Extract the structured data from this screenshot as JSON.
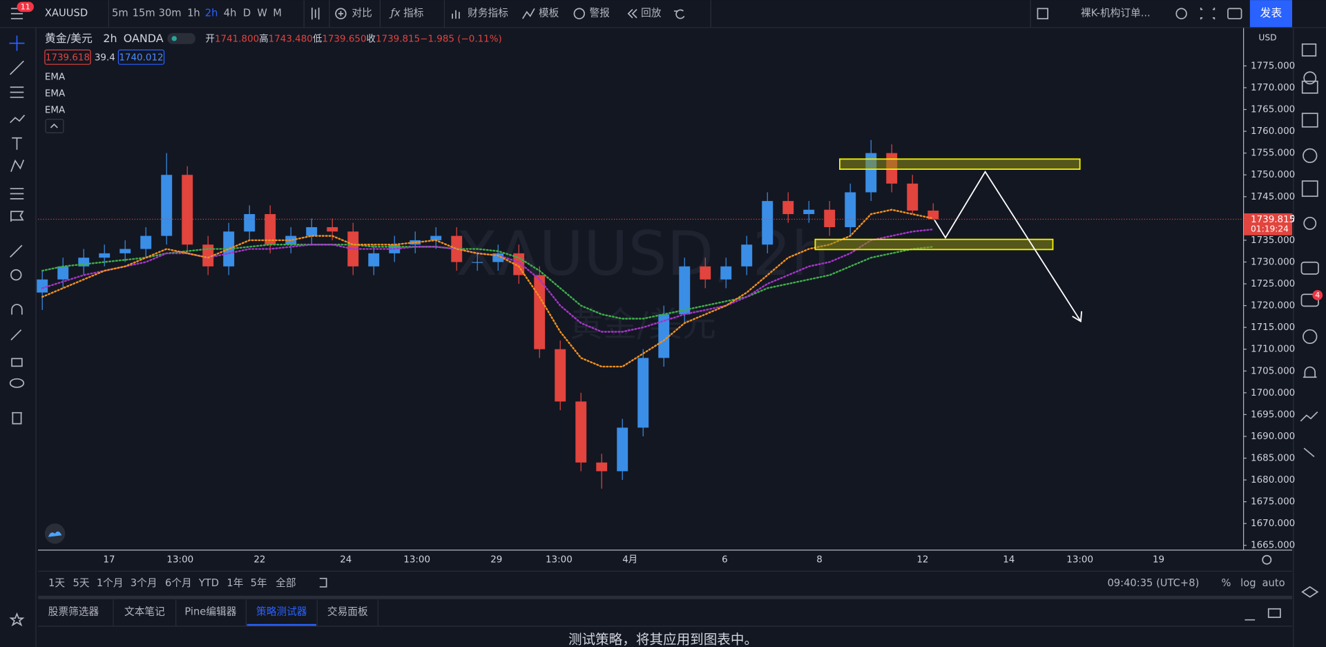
{
  "toolbar": {
    "badge": "11",
    "symbol": "XAUUSD",
    "intervals": [
      "5m",
      "15m",
      "30m",
      "1h",
      "2h",
      "4h",
      "D",
      "W",
      "M"
    ],
    "tools": [
      "对比",
      "指标",
      "财务指标",
      "模板",
      "警报",
      "回放"
    ],
    "layout_name": "裸K-机构订单...",
    "publish": "发表"
  },
  "legend": {
    "name": "黄金/美元",
    "interval": "2h",
    "exchange": "OANDA",
    "ohlc": [
      [
        "开",
        "1741.800"
      ],
      [
        "高",
        "1743.480"
      ],
      [
        "低",
        "1739.650"
      ],
      [
        "收",
        "1739.815"
      ]
    ],
    "change": "−1.985 (−0.11%)",
    "bid": "1739.618",
    "spread": "39.4",
    "ask": "1740.012"
  },
  "chart_data": {
    "type": "candlestick",
    "watermark": "XAUUSD, 2h",
    "watermark_sub": "黄金/美元",
    "currency": "USD",
    "up_color": "#3a8ee6",
    "down_color": "#e2443e",
    "open": [
      1723,
      1726,
      1729,
      1731,
      1732,
      1733,
      1736,
      1750,
      1734,
      1729,
      1737,
      1741,
      1734,
      1736,
      1738,
      1737,
      1729,
      1732,
      1734,
      1735,
      1736,
      1730,
      1730,
      1732,
      1727,
      1710,
      1698,
      1684,
      1682,
      1692,
      1708,
      1718,
      1729,
      1726,
      1729,
      1734,
      1744,
      1741,
      1742,
      1738,
      1746,
      1755,
      1748,
      1741.8
    ],
    "high": [
      1728,
      1731,
      1733,
      1734,
      1735,
      1738,
      1755,
      1752,
      1736,
      1739,
      1743,
      1743,
      1738,
      1740,
      1740,
      1739,
      1734,
      1736,
      1737,
      1738,
      1738,
      1732,
      1734,
      1734,
      1729,
      1712,
      1700,
      1686,
      1694,
      1710,
      1720,
      1731,
      1731,
      1731,
      1736,
      1746,
      1746,
      1744,
      1744,
      1748,
      1758,
      1757,
      1750,
      1743.48
    ],
    "low": [
      1719,
      1724,
      1727,
      1729,
      1730,
      1731,
      1734,
      1732,
      1727,
      1727,
      1735,
      1732,
      1732,
      1734,
      1735,
      1727,
      1727,
      1730,
      1732,
      1733,
      1728,
      1728,
      1728,
      1725,
      1708,
      1696,
      1682,
      1678,
      1680,
      1690,
      1706,
      1716,
      1724,
      1724,
      1727,
      1732,
      1739,
      1739,
      1736,
      1736,
      1744,
      1746,
      1741,
      1739.65
    ],
    "close": [
      1726,
      1729,
      1731,
      1732,
      1733,
      1736,
      1750,
      1734,
      1729,
      1737,
      1741,
      1734,
      1736,
      1738,
      1737,
      1729,
      1732,
      1734,
      1735,
      1736,
      1730,
      1730,
      1732,
      1727,
      1710,
      1698,
      1684,
      1682,
      1692,
      1708,
      1718,
      1729,
      1726,
      1729,
      1734,
      1744,
      1741,
      1742,
      1738,
      1746,
      1755,
      1748,
      1741.8,
      1739.815
    ],
    "series": [
      {
        "name": "EMA",
        "color": "#3fae4a",
        "values": [
          1728,
          1729,
          1729.5,
          1730,
          1730.5,
          1731,
          1732,
          1732.5,
          1733,
          1733,
          1733.5,
          1734,
          1734,
          1734,
          1734,
          1734,
          1733.5,
          1733.5,
          1733.5,
          1733.5,
          1733,
          1733,
          1732.5,
          1731,
          1728,
          1724,
          1720,
          1718,
          1717,
          1717,
          1718,
          1719,
          1720,
          1721,
          1722,
          1724,
          1725,
          1726,
          1727,
          1729,
          1731,
          1732,
          1733,
          1733.5
        ]
      },
      {
        "name": "EMA",
        "color": "#a535c9",
        "values": [
          1724,
          1725.5,
          1727,
          1728,
          1729,
          1730,
          1732,
          1732,
          1731,
          1732,
          1733,
          1733,
          1733.5,
          1734,
          1734,
          1733,
          1733,
          1733,
          1733.5,
          1733.5,
          1733,
          1732,
          1731.5,
          1730,
          1726,
          1720,
          1716,
          1714,
          1714,
          1715,
          1716.5,
          1718,
          1719,
          1720,
          1722,
          1725,
          1727,
          1729,
          1730,
          1732,
          1735,
          1736,
          1737,
          1737.5
        ]
      },
      {
        "name": "EMA",
        "color": "#f0901e",
        "values": [
          1722,
          1724,
          1726,
          1728,
          1729,
          1731,
          1733,
          1732,
          1731,
          1733,
          1735,
          1735,
          1735,
          1736,
          1736,
          1734,
          1734,
          1734,
          1734.5,
          1735,
          1733,
          1732,
          1731.5,
          1729,
          1722,
          1714,
          1708,
          1706,
          1706,
          1709,
          1712,
          1716,
          1718,
          1720,
          1723,
          1727,
          1731,
          1733,
          1734,
          1736,
          1741,
          1742,
          1741,
          1740
        ]
      }
    ],
    "ylim": [
      1664,
      1783.7
    ],
    "yticks": [
      {
        "value": 1665,
        "label": "1665.000"
      },
      {
        "value": 1670,
        "label": "1670.000"
      },
      {
        "value": 1675,
        "label": "1675.000"
      },
      {
        "value": 1680,
        "label": "1680.000"
      },
      {
        "value": 1685,
        "label": "1685.000"
      },
      {
        "value": 1690,
        "label": "1690.000"
      },
      {
        "value": 1695,
        "label": "1695.000"
      },
      {
        "value": 1700,
        "label": "1700.000"
      },
      {
        "value": 1705,
        "label": "1705.000"
      },
      {
        "value": 1710,
        "label": "1710.000"
      },
      {
        "value": 1715,
        "label": "1715.000"
      },
      {
        "value": 1720,
        "label": "1720.000"
      },
      {
        "value": 1725,
        "label": "1725.000"
      },
      {
        "value": 1730,
        "label": "1730.000"
      },
      {
        "value": 1735,
        "label": "1735.000"
      },
      {
        "value": 1740,
        "label": "1740.000"
      },
      {
        "value": 1745,
        "label": "1745.000"
      },
      {
        "value": 1750,
        "label": "1750.000"
      },
      {
        "value": 1755,
        "label": "1755.000"
      },
      {
        "value": 1760,
        "label": "1760.000"
      },
      {
        "value": 1765,
        "label": "1765.000"
      },
      {
        "value": 1770,
        "label": "1770.000"
      },
      {
        "value": 1775,
        "label": "1775.000"
      }
    ],
    "current_price": {
      "value": 1739.815,
      "label": "1739.815"
    },
    "countdown": "01:19:24",
    "time_labels": [
      "17",
      "13:00",
      "22",
      "24",
      "13:00",
      "29",
      "13:00",
      "4月",
      "6",
      "8",
      "12",
      "14",
      "13:00",
      "19"
    ]
  },
  "range_bar": {
    "ranges": [
      "1天",
      "5天",
      "1个月",
      "3个月",
      "6个月",
      "YTD",
      "1年",
      "5年",
      "全部"
    ],
    "clock": "09:40:35 (UTC+8)",
    "scale": [
      "%",
      "log",
      "auto"
    ]
  },
  "tabs": [
    "股票筛选器",
    "文本笔记",
    "Pine编辑器",
    "策略测试器",
    "交易面板"
  ],
  "sidebar_badge": "4",
  "message": "测试策略，将其应用到图表中。"
}
